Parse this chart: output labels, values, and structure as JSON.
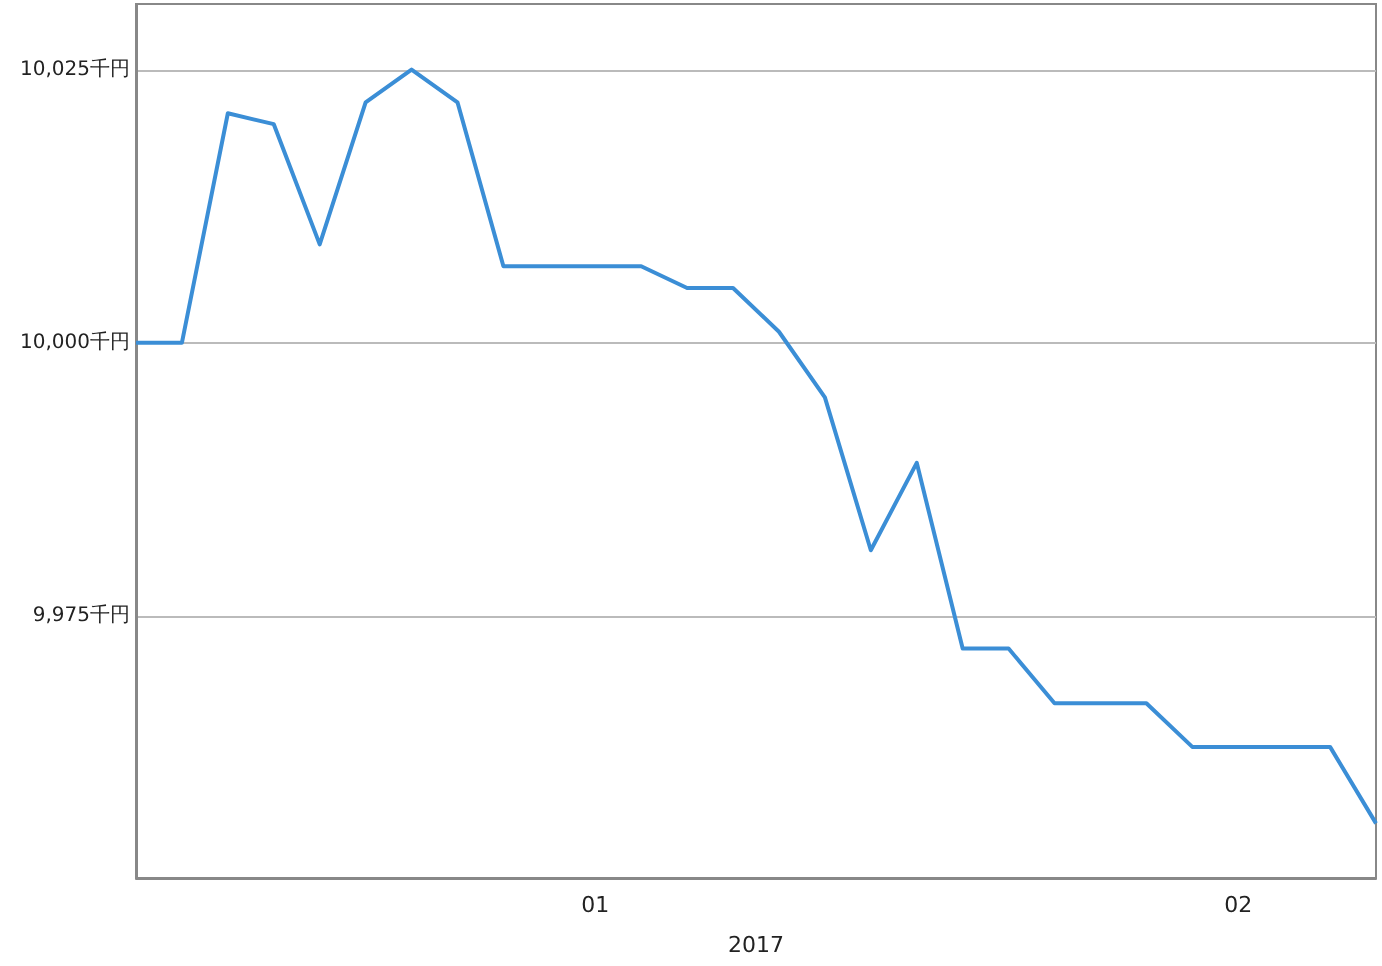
{
  "chart_data": {
    "type": "line",
    "xlabel": "2017",
    "categories": [
      null,
      null,
      null,
      null,
      null,
      null,
      null,
      null,
      null,
      null,
      "01",
      null,
      null,
      null,
      null,
      null,
      null,
      null,
      null,
      null,
      null,
      null,
      null,
      null,
      "02",
      null,
      null,
      null
    ],
    "series": [
      {
        "color": "#3b8ed6",
        "values": [
          10000,
          10000,
          10021,
          10020,
          10009,
          10022,
          10025,
          10022,
          10007,
          10007,
          10007,
          10007,
          10005,
          10005,
          10001,
          9995,
          9981,
          9989,
          9972,
          9972,
          9967,
          9967,
          9967,
          9963,
          9963,
          9963,
          9963,
          9956
        ]
      }
    ],
    "ylim": [
      9951,
      10031
    ],
    "yticks": [
      {
        "value": 9975,
        "label": "9,975千円"
      },
      {
        "value": 10000,
        "label": "10,000千円"
      },
      {
        "value": 10025,
        "label": "10,025千円"
      }
    ],
    "grid": "y",
    "marker": "none",
    "line_style": "solid"
  }
}
